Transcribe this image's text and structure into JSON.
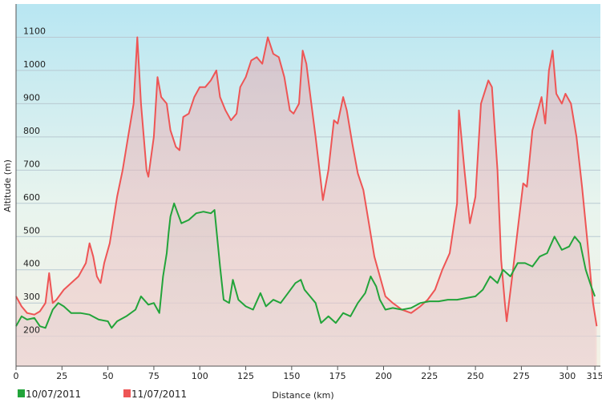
{
  "chart_data": {
    "type": "area",
    "xlabel": "Distance  (km)",
    "ylabel": "Altitude (m)",
    "xlim": [
      0,
      318
    ],
    "ylim": [
      110,
      1200
    ],
    "x_ticks": [
      0,
      25,
      50,
      75,
      100,
      125,
      150,
      175,
      200,
      225,
      250,
      275,
      300,
      315
    ],
    "y_ticks": [
      200,
      300,
      400,
      500,
      600,
      700,
      800,
      900,
      1000,
      1100
    ],
    "grid": true,
    "legend_position": "bottom-left",
    "series": [
      {
        "name": "10/07/2011",
        "color": "#22a43a",
        "points": [
          [
            0,
            230
          ],
          [
            3,
            260
          ],
          [
            6,
            250
          ],
          [
            10,
            255
          ],
          [
            13,
            230
          ],
          [
            16,
            225
          ],
          [
            20,
            280
          ],
          [
            23,
            300
          ],
          [
            26,
            290
          ],
          [
            30,
            270
          ],
          [
            35,
            270
          ],
          [
            40,
            265
          ],
          [
            45,
            250
          ],
          [
            50,
            245
          ],
          [
            52,
            225
          ],
          [
            55,
            245
          ],
          [
            60,
            260
          ],
          [
            65,
            280
          ],
          [
            68,
            320
          ],
          [
            72,
            295
          ],
          [
            75,
            300
          ],
          [
            78,
            270
          ],
          [
            80,
            380
          ],
          [
            82,
            450
          ],
          [
            83,
            510
          ],
          [
            84,
            560
          ],
          [
            86,
            600
          ],
          [
            88,
            570
          ],
          [
            90,
            540
          ],
          [
            94,
            550
          ],
          [
            98,
            570
          ],
          [
            102,
            575
          ],
          [
            106,
            570
          ],
          [
            108,
            580
          ],
          [
            111,
            410
          ],
          [
            113,
            310
          ],
          [
            116,
            300
          ],
          [
            118,
            370
          ],
          [
            121,
            310
          ],
          [
            125,
            290
          ],
          [
            129,
            280
          ],
          [
            133,
            330
          ],
          [
            136,
            290
          ],
          [
            140,
            310
          ],
          [
            144,
            300
          ],
          [
            148,
            330
          ],
          [
            152,
            360
          ],
          [
            155,
            370
          ],
          [
            157,
            340
          ],
          [
            160,
            320
          ],
          [
            163,
            300
          ],
          [
            166,
            240
          ],
          [
            170,
            260
          ],
          [
            174,
            240
          ],
          [
            178,
            270
          ],
          [
            182,
            260
          ],
          [
            186,
            300
          ],
          [
            190,
            330
          ],
          [
            193,
            380
          ],
          [
            196,
            350
          ],
          [
            198,
            310
          ],
          [
            201,
            280
          ],
          [
            205,
            285
          ],
          [
            210,
            280
          ],
          [
            215,
            285
          ],
          [
            220,
            300
          ],
          [
            225,
            305
          ],
          [
            230,
            305
          ],
          [
            235,
            310
          ],
          [
            240,
            310
          ],
          [
            245,
            315
          ],
          [
            250,
            320
          ],
          [
            254,
            340
          ],
          [
            258,
            380
          ],
          [
            262,
            360
          ],
          [
            265,
            400
          ],
          [
            269,
            380
          ],
          [
            273,
            420
          ],
          [
            277,
            420
          ],
          [
            281,
            410
          ],
          [
            285,
            440
          ],
          [
            289,
            450
          ],
          [
            293,
            500
          ],
          [
            297,
            460
          ],
          [
            301,
            470
          ],
          [
            304,
            500
          ],
          [
            307,
            480
          ],
          [
            310,
            400
          ],
          [
            313,
            350
          ],
          [
            315,
            320
          ]
        ]
      },
      {
        "name": "11/07/2011",
        "color": "#ee5555",
        "points": [
          [
            0,
            320
          ],
          [
            3,
            290
          ],
          [
            6,
            270
          ],
          [
            10,
            265
          ],
          [
            13,
            275
          ],
          [
            16,
            300
          ],
          [
            18,
            390
          ],
          [
            20,
            300
          ],
          [
            22,
            310
          ],
          [
            26,
            340
          ],
          [
            30,
            360
          ],
          [
            34,
            380
          ],
          [
            38,
            420
          ],
          [
            40,
            480
          ],
          [
            42,
            440
          ],
          [
            44,
            380
          ],
          [
            46,
            360
          ],
          [
            48,
            420
          ],
          [
            51,
            480
          ],
          [
            55,
            620
          ],
          [
            58,
            700
          ],
          [
            61,
            800
          ],
          [
            64,
            900
          ],
          [
            66,
            1100
          ],
          [
            68,
            900
          ],
          [
            71,
            700
          ],
          [
            72,
            680
          ],
          [
            75,
            800
          ],
          [
            77,
            980
          ],
          [
            79,
            920
          ],
          [
            82,
            900
          ],
          [
            84,
            820
          ],
          [
            87,
            770
          ],
          [
            89,
            760
          ],
          [
            91,
            860
          ],
          [
            94,
            870
          ],
          [
            97,
            920
          ],
          [
            100,
            950
          ],
          [
            103,
            950
          ],
          [
            106,
            970
          ],
          [
            109,
            1000
          ],
          [
            111,
            920
          ],
          [
            114,
            880
          ],
          [
            117,
            850
          ],
          [
            120,
            870
          ],
          [
            122,
            950
          ],
          [
            125,
            980
          ],
          [
            128,
            1030
          ],
          [
            131,
            1040
          ],
          [
            134,
            1020
          ],
          [
            137,
            1100
          ],
          [
            140,
            1050
          ],
          [
            143,
            1040
          ],
          [
            146,
            980
          ],
          [
            149,
            880
          ],
          [
            151,
            870
          ],
          [
            154,
            900
          ],
          [
            156,
            1060
          ],
          [
            158,
            1020
          ],
          [
            160,
            930
          ],
          [
            163,
            800
          ],
          [
            166,
            660
          ],
          [
            167,
            610
          ],
          [
            170,
            700
          ],
          [
            173,
            850
          ],
          [
            175,
            840
          ],
          [
            178,
            920
          ],
          [
            180,
            880
          ],
          [
            183,
            780
          ],
          [
            186,
            690
          ],
          [
            189,
            640
          ],
          [
            192,
            540
          ],
          [
            195,
            440
          ],
          [
            198,
            380
          ],
          [
            201,
            320
          ],
          [
            205,
            300
          ],
          [
            210,
            280
          ],
          [
            215,
            270
          ],
          [
            220,
            290
          ],
          [
            224,
            310
          ],
          [
            228,
            340
          ],
          [
            232,
            400
          ],
          [
            236,
            450
          ],
          [
            240,
            600
          ],
          [
            241,
            880
          ],
          [
            244,
            700
          ],
          [
            247,
            540
          ],
          [
            250,
            620
          ],
          [
            253,
            900
          ],
          [
            257,
            970
          ],
          [
            259,
            950
          ],
          [
            262,
            700
          ],
          [
            264,
            430
          ],
          [
            266,
            300
          ],
          [
            267,
            245
          ],
          [
            270,
            380
          ],
          [
            273,
            520
          ],
          [
            276,
            660
          ],
          [
            278,
            650
          ],
          [
            281,
            820
          ],
          [
            284,
            880
          ],
          [
            286,
            920
          ],
          [
            288,
            840
          ],
          [
            290,
            1000
          ],
          [
            292,
            1060
          ],
          [
            294,
            930
          ],
          [
            297,
            900
          ],
          [
            299,
            930
          ],
          [
            302,
            900
          ],
          [
            305,
            800
          ],
          [
            308,
            650
          ],
          [
            311,
            480
          ],
          [
            314,
            300
          ],
          [
            316,
            230
          ]
        ]
      }
    ]
  }
}
